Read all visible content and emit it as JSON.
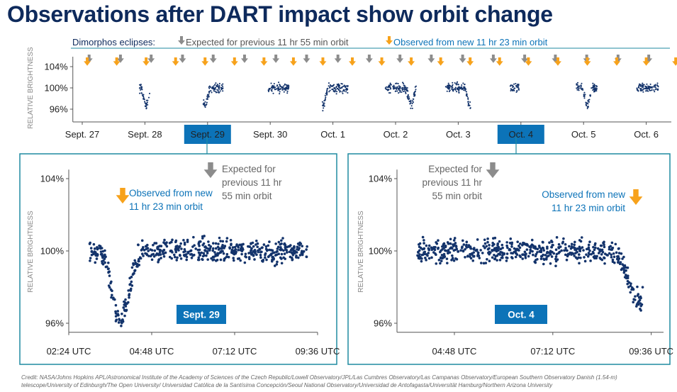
{
  "title": "Observations after DART impact show orbit change",
  "legend": {
    "label": "Dimorphos eclipses:",
    "expected": "Expected for previous 11 hr 55 min orbit",
    "observed": "Observed from new 11 hr 23 min orbit"
  },
  "colors": {
    "title": "#0e2a5c",
    "points": "#13336b",
    "expected_arrow": "#8c8c8c",
    "observed_arrow": "#f7a21b",
    "highlight": "#0c73b8",
    "frame": "#1f8aa0"
  },
  "credit": "Credit: NASA/Johns Hopkins APL/Astronomical Institute of the Academy of Sciences of the Czech Republic/Lowell Observatory/JPL/Las Cumbres Observatory/Las Campanas Observatory/European Southern Observatory Danish (1.54-m) telescope/University of Edinburgh/The Open University/ Universidad Católica de la Santísima Concepción/Seoul National Observatory/Universidad de Antofagasta/Universität Hamburg/Northern Arizona University",
  "chart_data": [
    {
      "type": "scatter",
      "ylabel": "RELATIVE BRIGHTNESS",
      "y_ticks": [
        "104%",
        "100%",
        "96%"
      ],
      "y_tick_values": [
        104,
        100,
        96
      ],
      "ylim": [
        95,
        105
      ],
      "x_ticks": [
        "Sept. 27",
        "Sept. 28",
        "Sept. 29",
        "Sept. 30",
        "Oct. 1",
        "Oct. 2",
        "Oct. 3",
        "Oct. 4",
        "Oct. 5",
        "Oct. 6"
      ],
      "xlim": [
        -0.15,
        9.4
      ],
      "highlighted_ticks": [
        "Sept. 29",
        "Oct. 4"
      ],
      "observation_windows_days": [
        [
          0.9,
          1.08
        ],
        [
          1.93,
          2.25
        ],
        [
          2.97,
          3.3
        ],
        [
          3.83,
          4.25
        ],
        [
          4.83,
          5.33
        ],
        [
          5.8,
          6.2
        ],
        [
          6.83,
          6.97
        ],
        [
          7.88,
          8.22
        ],
        [
          8.85,
          9.2
        ]
      ],
      "expected_eclipses_days": [
        0.11,
        0.61,
        1.1,
        1.6,
        2.09,
        2.59,
        3.09,
        3.58,
        4.08,
        4.58,
        5.07,
        5.57,
        6.07,
        6.56,
        7.06,
        7.55,
        8.05,
        8.55,
        9.04
      ],
      "observed_eclipses_days": [
        0.08,
        0.55,
        1.02,
        1.49,
        1.96,
        2.43,
        2.9,
        3.37,
        3.84,
        4.31,
        4.78,
        5.25,
        5.72,
        6.19,
        6.66,
        7.12,
        7.59,
        8.06,
        8.53,
        9.0,
        9.47
      ],
      "dip_days": [
        1.02,
        1.96,
        3.84,
        4.31,
        5.25,
        6.19,
        7.12,
        8.06
      ]
    },
    {
      "type": "scatter",
      "label": "Sept. 29",
      "ylabel": "RELATIVE BRIGHTNESS",
      "y_ticks": [
        "104%",
        "100%",
        "96%"
      ],
      "y_tick_values": [
        104,
        100,
        96
      ],
      "ylim": [
        95.5,
        104.5
      ],
      "x_ticks": [
        "02:24 UTC",
        "04:48 UTC",
        "07:12 UTC",
        "09:36 UTC"
      ],
      "x_tick_values_hours": [
        2.4,
        4.8,
        7.2,
        9.6
      ],
      "xlim": [
        2.4,
        9.6
      ],
      "data_range_hours": [
        3.0,
        9.3
      ],
      "eclipse_min_hours": 3.9,
      "eclipse_depth_percent": 3.8,
      "expected_eclipse_hours": 6.8,
      "observed_eclipse_hours": 3.9,
      "annotation_expected": [
        "Expected for",
        "previous 11 hr",
        "55 min orbit"
      ],
      "annotation_observed": [
        "Observed from new",
        "11 hr 23 min orbit"
      ]
    },
    {
      "type": "scatter",
      "label": "Oct. 4",
      "ylabel": "RELATIVE BRIGHTNESS",
      "y_ticks": [
        "104%",
        "100%",
        "96%"
      ],
      "y_tick_values": [
        104,
        100,
        96
      ],
      "ylim": [
        95.5,
        104.5
      ],
      "x_ticks": [
        "04:48 UTC",
        "07:12 UTC",
        "09:36 UTC"
      ],
      "x_tick_values_hours": [
        4.8,
        7.2,
        9.6
      ],
      "xlim": [
        3.4,
        9.9
      ],
      "data_range_hours": [
        3.9,
        9.4
      ],
      "eclipse_min_hours": 9.3,
      "eclipse_depth_percent": 2.8,
      "expected_eclipse_hours": 4.8,
      "observed_eclipse_hours": 9.3,
      "annotation_expected": [
        "Expected for",
        "previous 11 hr",
        "55 min orbit"
      ],
      "annotation_observed": [
        "Observed from new",
        "11 hr 23 min orbit"
      ]
    }
  ]
}
